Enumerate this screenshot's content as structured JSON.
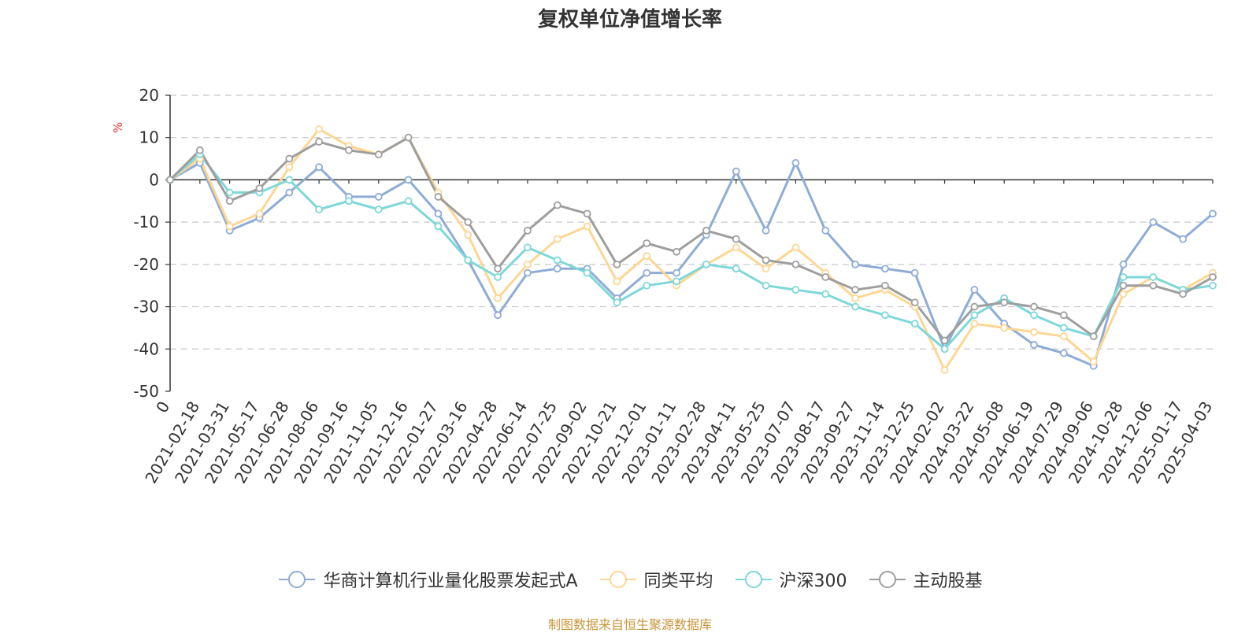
{
  "title": "复权单位净值增长率",
  "footer": "制图数据来自恒生聚源数据库",
  "chart_data": {
    "type": "line",
    "ylabel": "%",
    "ylim": [
      -50,
      20
    ],
    "yticks": [
      20,
      10,
      0,
      -10,
      -20,
      -30,
      -40,
      -50
    ],
    "grid": true,
    "legend_position": "bottom",
    "x": [
      "0",
      "2021-02-18",
      "2021-03-31",
      "2021-05-17",
      "2021-06-28",
      "2021-08-06",
      "2021-09-16",
      "2021-11-05",
      "2021-12-16",
      "2022-01-27",
      "2022-03-16",
      "2022-04-28",
      "2022-06-14",
      "2022-07-25",
      "2022-09-02",
      "2022-10-21",
      "2022-12-01",
      "2023-01-11",
      "2023-02-28",
      "2023-04-11",
      "2023-05-25",
      "2023-07-07",
      "2023-08-17",
      "2023-09-27",
      "2023-11-14",
      "2023-12-25",
      "2024-02-02",
      "2024-03-22",
      "2024-05-08",
      "2024-06-19",
      "2024-07-29",
      "2024-09-06",
      "2024-10-28",
      "2024-12-06",
      "2025-01-17",
      "2025-04-03"
    ],
    "series": [
      {
        "name": "华商计算机行业量化股票发起式A",
        "color": "#8eacd6",
        "values": [
          0,
          4,
          -12,
          -9,
          -3,
          3,
          -4,
          -4,
          0,
          -8,
          -19,
          -32,
          -22,
          -21,
          -21,
          -28,
          -22,
          -22,
          -13,
          2,
          -12,
          4,
          -12,
          -20,
          -21,
          -22,
          -40,
          -26,
          -34,
          -39,
          -41,
          -44,
          -20,
          -10,
          -14,
          -8
        ]
      },
      {
        "name": "同类平均",
        "color": "#fdd694",
        "values": [
          0,
          5,
          -11,
          -8,
          3,
          12,
          8,
          6,
          10,
          -3,
          -13,
          -28,
          -20,
          -14,
          -11,
          -24,
          -18,
          -25,
          -20,
          -16,
          -21,
          -16,
          -22,
          -28,
          -26,
          -30,
          -45,
          -34,
          -35,
          -36,
          -37,
          -43,
          -27,
          -23,
          -26,
          -22
        ]
      },
      {
        "name": "沪深300",
        "color": "#7ed7d8",
        "values": [
          0,
          6,
          -3,
          -3,
          0,
          -7,
          -5,
          -7,
          -5,
          -11,
          -19,
          -23,
          -16,
          -19,
          -22,
          -29,
          -25,
          -24,
          -20,
          -21,
          -25,
          -26,
          -27,
          -30,
          -32,
          -34,
          -40,
          -32,
          -28,
          -32,
          -35,
          -37,
          -23,
          -23,
          -26,
          -25
        ]
      },
      {
        "name": "主动股基",
        "color": "#9e9e9e",
        "values": [
          0,
          7,
          -5,
          -2,
          5,
          9,
          7,
          6,
          10,
          -4,
          -10,
          -21,
          -12,
          -6,
          -8,
          -20,
          -15,
          -17,
          -12,
          -14,
          -19,
          -20,
          -23,
          -26,
          -25,
          -29,
          -38,
          -30,
          -29,
          -30,
          -32,
          -37,
          -25,
          -25,
          -27,
          -23
        ]
      }
    ]
  }
}
